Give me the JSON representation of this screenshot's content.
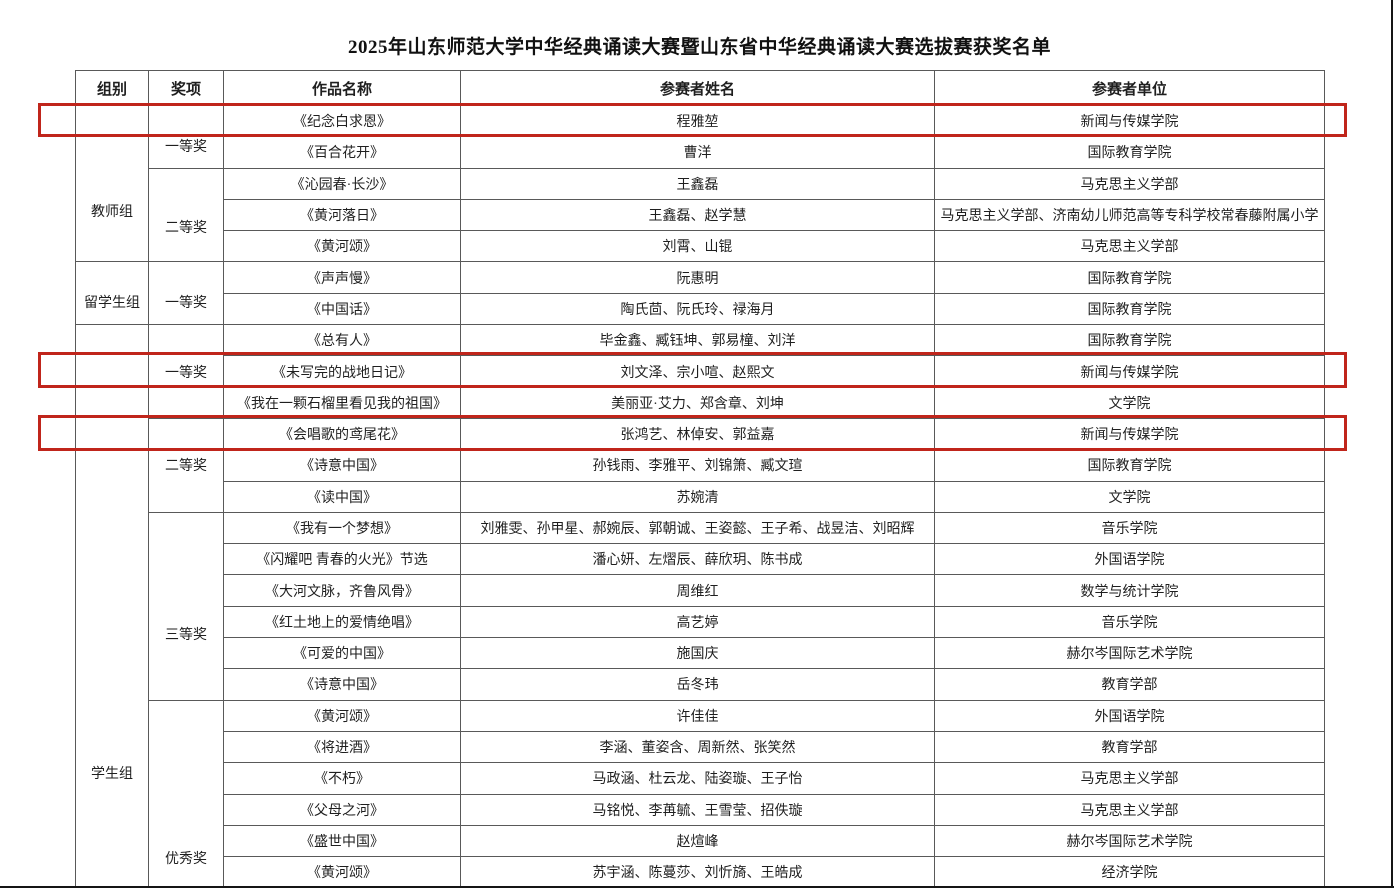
{
  "page": {
    "title": "2025年山东师范大学中华经典诵读大赛暨山东省中华经典诵读大赛选拔赛获奖名单"
  },
  "table": {
    "headers": [
      "组别",
      "奖项",
      "作品名称",
      "参赛者姓名",
      "参赛者单位"
    ],
    "group_cells": [
      {
        "label": "教师组",
        "start": 0,
        "span": 5
      },
      {
        "label": "留学生组",
        "start": 5,
        "span": 2
      },
      {
        "label": "学生组",
        "start": 7,
        "span": 18
      }
    ],
    "award_cells": [
      {
        "label": "一等奖",
        "start": 0,
        "span": 2
      },
      {
        "label": "二等奖",
        "start": 2,
        "span": 3
      },
      {
        "label": "一等奖",
        "start": 5,
        "span": 2
      },
      {
        "label": "一等奖",
        "start": 7,
        "span": 3
      },
      {
        "label": "二等奖",
        "start": 10,
        "span": 3
      },
      {
        "label": "三等奖",
        "start": 13,
        "span": 6
      },
      {
        "label": "优秀奖",
        "start": 19,
        "span": 6
      }
    ],
    "rows": [
      {
        "work": "《纪念白求恩》",
        "names": "程雅堃",
        "unit": "新闻与传媒学院",
        "highlighted": true
      },
      {
        "work": "《百合花开》",
        "names": "曹洋",
        "unit": "国际教育学院",
        "highlighted": false
      },
      {
        "work": "《沁园春·长沙》",
        "names": "王鑫磊",
        "unit": "马克思主义学部",
        "highlighted": false
      },
      {
        "work": "《黄河落日》",
        "names": "王鑫磊、赵学慧",
        "unit": "马克思主义学部、济南幼儿师范高等专科学校常春藤附属小学",
        "highlighted": false
      },
      {
        "work": "《黄河颂》",
        "names": "刘霄、山锟",
        "unit": "马克思主义学部",
        "highlighted": false
      },
      {
        "work": "《声声慢》",
        "names": "阮惠明",
        "unit": "国际教育学院",
        "highlighted": false
      },
      {
        "work": "《中国话》",
        "names": "陶氏茴、阮氏玲、禄海月",
        "unit": "国际教育学院",
        "highlighted": false
      },
      {
        "work": "《总有人》",
        "names": "毕金鑫、臧钰坤、郭易橦、刘洋",
        "unit": "国际教育学院",
        "highlighted": false
      },
      {
        "work": "《未写完的战地日记》",
        "names": "刘文泽、宗小喧、赵熙文",
        "unit": "新闻与传媒学院",
        "highlighted": true
      },
      {
        "work": "《我在一颗石榴里看见我的祖国》",
        "names": "美丽亚·艾力、郑含章、刘坤",
        "unit": "文学院",
        "highlighted": false
      },
      {
        "work": "《会唱歌的鸢尾花》",
        "names": "张鸿艺、林倬安、郭益嘉",
        "unit": "新闻与传媒学院",
        "highlighted": true
      },
      {
        "work": "《诗意中国》",
        "names": "孙钱雨、李雅平、刘锦箫、臧文瑄",
        "unit": "国际教育学院",
        "highlighted": false
      },
      {
        "work": "《读中国》",
        "names": "苏婉清",
        "unit": "文学院",
        "highlighted": false
      },
      {
        "work": "《我有一个梦想》",
        "names": "刘雅雯、孙甲星、郝婉辰、郭朝诚、王姿懿、王子希、战昱洁、刘昭辉",
        "unit": "音乐学院",
        "highlighted": false
      },
      {
        "work": "《闪耀吧 青春的火光》节选",
        "names": "潘心妍、左熠辰、薛欣玥、陈书成",
        "unit": "外国语学院",
        "highlighted": false
      },
      {
        "work": "《大河文脉，齐鲁风骨》",
        "names": "周维红",
        "unit": "数学与统计学院",
        "highlighted": false
      },
      {
        "work": "《红土地上的爱情绝唱》",
        "names": "高艺婷",
        "unit": "音乐学院",
        "highlighted": false
      },
      {
        "work": "《可爱的中国》",
        "names": "施国庆",
        "unit": "赫尔岑国际艺术学院",
        "highlighted": false
      },
      {
        "work": "《诗意中国》",
        "names": "岳冬玮",
        "unit": "教育学部",
        "highlighted": false
      },
      {
        "work": "《黄河颂》",
        "names": "许佳佳",
        "unit": "外国语学院",
        "highlighted": false
      },
      {
        "work": "《将进酒》",
        "names": "李涵、董姿含、周新然、张笑然",
        "unit": "教育学部",
        "highlighted": false
      },
      {
        "work": "《不朽》",
        "names": "马政涵、杜云龙、陆姿璇、王子怡",
        "unit": "马克思主义学部",
        "highlighted": false
      },
      {
        "work": "《父母之河》",
        "names": "马铭悦、李苒毓、王雪莹、招佚璇",
        "unit": "马克思主义学部",
        "highlighted": false
      },
      {
        "work": "《盛世中国》",
        "names": "赵煊峰",
        "unit": "赫尔岑国际艺术学院",
        "highlighted": false
      },
      {
        "work": "《黄河颂》",
        "names": "苏宇涵、陈蔓莎、刘忻旖、王皓成",
        "unit": "经济学院",
        "highlighted": false
      }
    ],
    "highlight_color": "#c0251b"
  }
}
